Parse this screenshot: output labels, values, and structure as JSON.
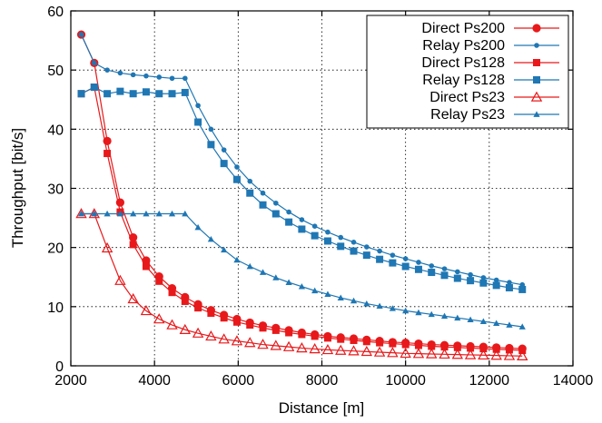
{
  "chart_data": {
    "type": "line",
    "xlabel": "Distance [m]",
    "ylabel": "Throughput [bit/s]",
    "xlim": [
      2000,
      14000
    ],
    "ylim": [
      0,
      60
    ],
    "xticks": [
      2000,
      4000,
      6000,
      8000,
      10000,
      12000,
      14000
    ],
    "yticks": [
      0,
      10,
      20,
      30,
      40,
      50,
      60
    ],
    "grid": true,
    "legend_position": "top-right",
    "x": [
      2250,
      2560,
      2870,
      3180,
      3490,
      3800,
      4110,
      4420,
      4730,
      5040,
      5350,
      5660,
      5970,
      6280,
      6590,
      6900,
      7210,
      7520,
      7830,
      8140,
      8450,
      8760,
      9070,
      9380,
      9690,
      10000,
      10310,
      10620,
      10930,
      11240,
      11550,
      11860,
      12170,
      12480,
      12790
    ],
    "series": [
      {
        "name": "Direct Ps200",
        "color": "#e8191b",
        "marker": "circle",
        "values": [
          56,
          51.2,
          38,
          27.6,
          21.7,
          17.8,
          15.1,
          13.1,
          11.6,
          10.4,
          9.4,
          8.6,
          7.9,
          7.3,
          6.8,
          6.4,
          6.0,
          5.6,
          5.3,
          5.0,
          4.8,
          4.6,
          4.4,
          4.2,
          4.0,
          3.9,
          3.75,
          3.6,
          3.5,
          3.4,
          3.3,
          3.2,
          3.1,
          3.0,
          2.9
        ]
      },
      {
        "name": "Relay Ps200",
        "color": "#1f77b4",
        "marker": "dot",
        "values": [
          56,
          51.2,
          50,
          49.5,
          49.2,
          49,
          48.8,
          48.6,
          48.6,
          44,
          40,
          36.5,
          33.6,
          31.2,
          29.2,
          27.5,
          26.0,
          24.7,
          23.6,
          22.6,
          21.7,
          20.9,
          20.1,
          19.4,
          18.7,
          18.1,
          17.5,
          16.9,
          16.4,
          15.9,
          15.4,
          14.9,
          14.5,
          14.1,
          13.7
        ]
      },
      {
        "name": "Direct Ps128",
        "color": "#e8191b",
        "marker": "square",
        "values": [
          46,
          47.1,
          35.9,
          26,
          20.5,
          16.8,
          14.3,
          12.4,
          10.9,
          9.8,
          8.9,
          8.1,
          7.4,
          6.9,
          6.4,
          6.0,
          5.6,
          5.3,
          5.0,
          4.7,
          4.5,
          4.3,
          4.1,
          3.9,
          3.75,
          3.6,
          3.45,
          3.3,
          3.2,
          3.1,
          3.0,
          2.9,
          2.8,
          2.7,
          2.6
        ]
      },
      {
        "name": "Relay Ps128",
        "color": "#1f77b4",
        "marker": "square",
        "values": [
          46,
          47.1,
          46,
          46.4,
          46,
          46.3,
          46,
          46,
          46.2,
          41.2,
          37.4,
          34.2,
          31.5,
          29.2,
          27.2,
          25.7,
          24.3,
          23.1,
          22.0,
          21.1,
          20.2,
          19.4,
          18.7,
          18.0,
          17.4,
          16.8,
          16.3,
          15.8,
          15.3,
          14.8,
          14.4,
          14.0,
          13.6,
          13.2,
          12.9
        ]
      },
      {
        "name": "Direct Ps23",
        "color": "#e8191b",
        "marker": "triangle",
        "values": [
          25.7,
          25.7,
          19.9,
          14.4,
          11.3,
          9.3,
          7.9,
          6.9,
          6.1,
          5.5,
          5.0,
          4.5,
          4.2,
          3.9,
          3.6,
          3.4,
          3.2,
          3.0,
          2.85,
          2.7,
          2.6,
          2.5,
          2.4,
          2.3,
          2.2,
          2.1,
          2.05,
          2.0,
          1.95,
          1.9,
          1.85,
          1.8,
          1.75,
          1.7,
          1.65
        ]
      },
      {
        "name": "Relay Ps23",
        "color": "#1f77b4",
        "marker": "triangle-small",
        "values": [
          25.7,
          25.7,
          25.7,
          25.7,
          25.7,
          25.7,
          25.7,
          25.7,
          25.7,
          23.4,
          21.4,
          19.6,
          17.9,
          16.8,
          15.8,
          14.9,
          14.1,
          13.4,
          12.7,
          12.1,
          11.5,
          11.0,
          10.5,
          10.1,
          9.7,
          9.3,
          9.0,
          8.7,
          8.4,
          8.1,
          7.8,
          7.5,
          7.2,
          6.9,
          6.6
        ]
      }
    ]
  }
}
